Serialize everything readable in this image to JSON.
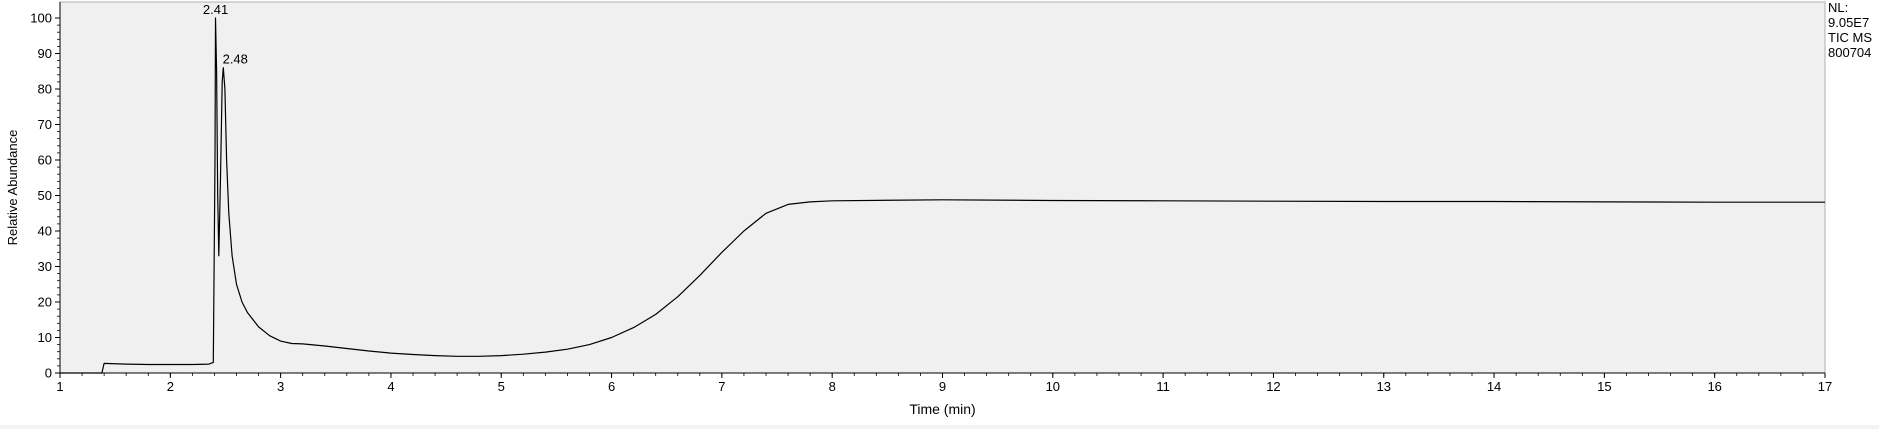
{
  "chart_data": {
    "type": "line",
    "title": "",
    "xlabel": "Time (min)",
    "ylabel": "Relative Abundance",
    "xlim": [
      1,
      17
    ],
    "ylim": [
      0,
      100
    ],
    "x_ticks": [
      1,
      2,
      3,
      4,
      5,
      6,
      7,
      8,
      9,
      10,
      11,
      12,
      13,
      14,
      15,
      16,
      17
    ],
    "y_ticks": [
      0,
      10,
      20,
      30,
      40,
      50,
      60,
      70,
      80,
      90,
      100
    ],
    "grid": false,
    "background_color": "#f0f0f0",
    "line_color": "#000000",
    "label_color": "#000000",
    "peak_annotations": [
      {
        "text": "2.41",
        "x": 2.41,
        "y": 100
      },
      {
        "text": "2.48",
        "x": 2.48,
        "y": 86
      }
    ],
    "info_lines": [
      "NL:",
      "9.05E7",
      "TIC  MS",
      "800704"
    ],
    "series": [
      {
        "values": [
          [
            1.0,
            0.0
          ],
          [
            1.2,
            0.0
          ],
          [
            1.38,
            0.0
          ],
          [
            1.4,
            2.7
          ],
          [
            1.6,
            2.5
          ],
          [
            1.8,
            2.4
          ],
          [
            2.0,
            2.4
          ],
          [
            2.2,
            2.4
          ],
          [
            2.35,
            2.5
          ],
          [
            2.39,
            3.0
          ],
          [
            2.405,
            60
          ],
          [
            2.41,
            100
          ],
          [
            2.42,
            85
          ],
          [
            2.43,
            50
          ],
          [
            2.44,
            33
          ],
          [
            2.455,
            55
          ],
          [
            2.47,
            82
          ],
          [
            2.48,
            86
          ],
          [
            2.495,
            80
          ],
          [
            2.51,
            60
          ],
          [
            2.53,
            45
          ],
          [
            2.56,
            33
          ],
          [
            2.6,
            25
          ],
          [
            2.65,
            20
          ],
          [
            2.7,
            17
          ],
          [
            2.8,
            13
          ],
          [
            2.9,
            10.5
          ],
          [
            3.0,
            9
          ],
          [
            3.1,
            8.3
          ],
          [
            3.2,
            8.2
          ],
          [
            3.4,
            7.6
          ],
          [
            3.6,
            6.9
          ],
          [
            3.8,
            6.2
          ],
          [
            4.0,
            5.6
          ],
          [
            4.2,
            5.2
          ],
          [
            4.4,
            4.9
          ],
          [
            4.6,
            4.7
          ],
          [
            4.8,
            4.7
          ],
          [
            5.0,
            4.9
          ],
          [
            5.2,
            5.3
          ],
          [
            5.4,
            5.9
          ],
          [
            5.6,
            6.7
          ],
          [
            5.8,
            8.0
          ],
          [
            6.0,
            10.0
          ],
          [
            6.2,
            12.8
          ],
          [
            6.4,
            16.5
          ],
          [
            6.6,
            21.5
          ],
          [
            6.8,
            27.5
          ],
          [
            7.0,
            34.0
          ],
          [
            7.2,
            40.0
          ],
          [
            7.4,
            45.0
          ],
          [
            7.6,
            47.5
          ],
          [
            7.8,
            48.2
          ],
          [
            8.0,
            48.5
          ],
          [
            9.0,
            48.8
          ],
          [
            10.0,
            48.6
          ],
          [
            11.0,
            48.5
          ],
          [
            12.0,
            48.4
          ],
          [
            13.0,
            48.3
          ],
          [
            14.0,
            48.3
          ],
          [
            15.0,
            48.2
          ],
          [
            16.0,
            48.1
          ],
          [
            17.0,
            48.1
          ]
        ]
      }
    ]
  }
}
